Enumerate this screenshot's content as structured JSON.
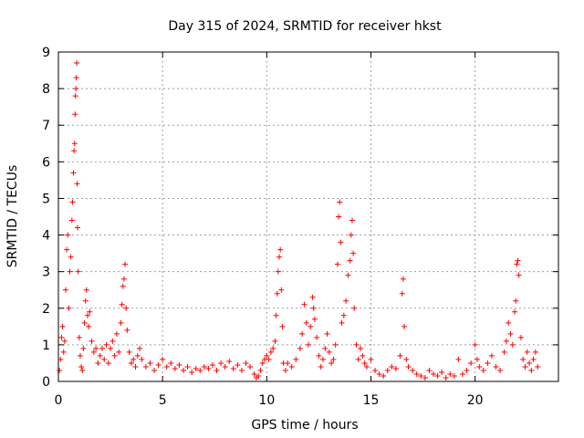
{
  "chart_data": {
    "type": "scatter",
    "title": "Day 315 of 2024, SRMTID for receiver hkst",
    "xlabel": "GPS time / hours",
    "ylabel": "SRMTID / TECUs",
    "xlim": [
      0,
      24
    ],
    "ylim": [
      0,
      9
    ],
    "xticks": [
      0,
      5,
      10,
      15,
      20
    ],
    "yticks": [
      0,
      1,
      2,
      3,
      4,
      5,
      6,
      7,
      8,
      9
    ],
    "grid": true,
    "marker": "plus",
    "color": "#ff0000",
    "series": [
      {
        "name": "SRMTID",
        "points": [
          [
            0.05,
            0.3
          ],
          [
            0.1,
            0.6
          ],
          [
            0.15,
            1.2
          ],
          [
            0.2,
            1.5
          ],
          [
            0.25,
            0.8
          ],
          [
            0.3,
            1.1
          ],
          [
            0.35,
            2.5
          ],
          [
            0.4,
            3.6
          ],
          [
            0.45,
            4.0
          ],
          [
            0.5,
            2.0
          ],
          [
            0.55,
            3.0
          ],
          [
            0.6,
            3.4
          ],
          [
            0.65,
            4.4
          ],
          [
            0.68,
            4.9
          ],
          [
            0.72,
            5.7
          ],
          [
            0.75,
            6.3
          ],
          [
            0.78,
            6.5
          ],
          [
            0.8,
            7.3
          ],
          [
            0.82,
            7.8
          ],
          [
            0.84,
            8.0
          ],
          [
            0.86,
            8.3
          ],
          [
            0.88,
            8.7
          ],
          [
            0.9,
            5.4
          ],
          [
            0.92,
            4.2
          ],
          [
            0.95,
            3.0
          ],
          [
            1.0,
            1.2
          ],
          [
            1.05,
            0.7
          ],
          [
            1.1,
            0.4
          ],
          [
            1.15,
            0.3
          ],
          [
            1.2,
            0.9
          ],
          [
            1.25,
            1.6
          ],
          [
            1.3,
            2.2
          ],
          [
            1.35,
            2.5
          ],
          [
            1.4,
            1.8
          ],
          [
            1.45,
            1.5
          ],
          [
            1.5,
            1.9
          ],
          [
            1.6,
            1.1
          ],
          [
            1.7,
            0.8
          ],
          [
            1.8,
            0.9
          ],
          [
            1.9,
            0.5
          ],
          [
            2.0,
            0.7
          ],
          [
            2.1,
            0.9
          ],
          [
            2.2,
            0.6
          ],
          [
            2.3,
            1.0
          ],
          [
            2.4,
            0.5
          ],
          [
            2.5,
            0.9
          ],
          [
            2.6,
            1.1
          ],
          [
            2.7,
            0.7
          ],
          [
            2.8,
            1.3
          ],
          [
            2.9,
            0.8
          ],
          [
            3.0,
            1.6
          ],
          [
            3.05,
            2.1
          ],
          [
            3.1,
            2.6
          ],
          [
            3.15,
            2.8
          ],
          [
            3.2,
            3.2
          ],
          [
            3.25,
            2.0
          ],
          [
            3.3,
            1.4
          ],
          [
            3.4,
            0.8
          ],
          [
            3.5,
            0.5
          ],
          [
            3.6,
            0.6
          ],
          [
            3.7,
            0.4
          ],
          [
            3.8,
            0.7
          ],
          [
            3.9,
            0.9
          ],
          [
            4.0,
            0.6
          ],
          [
            4.2,
            0.4
          ],
          [
            4.4,
            0.5
          ],
          [
            4.6,
            0.3
          ],
          [
            4.8,
            0.45
          ],
          [
            5.0,
            0.6
          ],
          [
            5.2,
            0.4
          ],
          [
            5.4,
            0.5
          ],
          [
            5.6,
            0.35
          ],
          [
            5.8,
            0.45
          ],
          [
            6.0,
            0.3
          ],
          [
            6.2,
            0.4
          ],
          [
            6.4,
            0.25
          ],
          [
            6.6,
            0.35
          ],
          [
            6.8,
            0.3
          ],
          [
            7.0,
            0.4
          ],
          [
            7.2,
            0.35
          ],
          [
            7.4,
            0.45
          ],
          [
            7.6,
            0.3
          ],
          [
            7.8,
            0.5
          ],
          [
            8.0,
            0.4
          ],
          [
            8.2,
            0.55
          ],
          [
            8.4,
            0.35
          ],
          [
            8.6,
            0.45
          ],
          [
            8.8,
            0.3
          ],
          [
            9.0,
            0.5
          ],
          [
            9.2,
            0.4
          ],
          [
            9.4,
            0.2
          ],
          [
            9.5,
            0.1
          ],
          [
            9.6,
            0.15
          ],
          [
            9.7,
            0.3
          ],
          [
            9.8,
            0.5
          ],
          [
            9.9,
            0.6
          ],
          [
            10.0,
            0.7
          ],
          [
            10.1,
            0.6
          ],
          [
            10.2,
            0.8
          ],
          [
            10.3,
            0.9
          ],
          [
            10.4,
            1.1
          ],
          [
            10.45,
            1.8
          ],
          [
            10.5,
            2.4
          ],
          [
            10.55,
            3.0
          ],
          [
            10.6,
            3.4
          ],
          [
            10.65,
            3.6
          ],
          [
            10.7,
            2.5
          ],
          [
            10.75,
            1.5
          ],
          [
            10.8,
            0.5
          ],
          [
            10.9,
            0.3
          ],
          [
            11.0,
            0.5
          ],
          [
            11.2,
            0.4
          ],
          [
            11.4,
            0.6
          ],
          [
            11.6,
            0.9
          ],
          [
            11.7,
            1.3
          ],
          [
            11.8,
            2.1
          ],
          [
            11.9,
            1.6
          ],
          [
            12.0,
            1.0
          ],
          [
            12.1,
            1.5
          ],
          [
            12.2,
            2.3
          ],
          [
            12.25,
            2.0
          ],
          [
            12.3,
            1.7
          ],
          [
            12.4,
            1.2
          ],
          [
            12.5,
            0.7
          ],
          [
            12.6,
            0.4
          ],
          [
            12.7,
            0.6
          ],
          [
            12.8,
            0.9
          ],
          [
            12.9,
            1.3
          ],
          [
            13.0,
            0.8
          ],
          [
            13.1,
            0.5
          ],
          [
            13.2,
            0.6
          ],
          [
            13.3,
            1.0
          ],
          [
            13.4,
            3.2
          ],
          [
            13.45,
            4.5
          ],
          [
            13.5,
            4.9
          ],
          [
            13.55,
            3.8
          ],
          [
            13.6,
            1.6
          ],
          [
            13.7,
            1.8
          ],
          [
            13.8,
            2.2
          ],
          [
            13.9,
            2.9
          ],
          [
            14.0,
            3.3
          ],
          [
            14.05,
            4.0
          ],
          [
            14.1,
            4.4
          ],
          [
            14.15,
            3.5
          ],
          [
            14.2,
            2.0
          ],
          [
            14.3,
            1.0
          ],
          [
            14.4,
            0.6
          ],
          [
            14.5,
            0.9
          ],
          [
            14.6,
            0.7
          ],
          [
            14.7,
            0.5
          ],
          [
            14.8,
            0.4
          ],
          [
            15.0,
            0.6
          ],
          [
            15.2,
            0.3
          ],
          [
            15.4,
            0.2
          ],
          [
            15.6,
            0.15
          ],
          [
            15.8,
            0.3
          ],
          [
            16.0,
            0.4
          ],
          [
            16.2,
            0.35
          ],
          [
            16.4,
            0.7
          ],
          [
            16.5,
            2.4
          ],
          [
            16.55,
            2.8
          ],
          [
            16.6,
            1.5
          ],
          [
            16.7,
            0.6
          ],
          [
            16.8,
            0.4
          ],
          [
            17.0,
            0.3
          ],
          [
            17.2,
            0.2
          ],
          [
            17.4,
            0.15
          ],
          [
            17.6,
            0.1
          ],
          [
            17.8,
            0.3
          ],
          [
            18.0,
            0.2
          ],
          [
            18.2,
            0.15
          ],
          [
            18.4,
            0.25
          ],
          [
            18.6,
            0.1
          ],
          [
            18.8,
            0.2
          ],
          [
            19.0,
            0.15
          ],
          [
            19.2,
            0.6
          ],
          [
            19.4,
            0.2
          ],
          [
            19.6,
            0.3
          ],
          [
            19.8,
            0.5
          ],
          [
            20.0,
            1.0
          ],
          [
            20.1,
            0.6
          ],
          [
            20.2,
            0.4
          ],
          [
            20.4,
            0.3
          ],
          [
            20.6,
            0.5
          ],
          [
            20.8,
            0.7
          ],
          [
            21.0,
            0.4
          ],
          [
            21.2,
            0.3
          ],
          [
            21.4,
            0.8
          ],
          [
            21.5,
            1.1
          ],
          [
            21.6,
            1.6
          ],
          [
            21.7,
            1.3
          ],
          [
            21.8,
            1.0
          ],
          [
            21.9,
            1.9
          ],
          [
            21.95,
            2.2
          ],
          [
            22.0,
            3.2
          ],
          [
            22.05,
            3.3
          ],
          [
            22.1,
            2.9
          ],
          [
            22.2,
            1.2
          ],
          [
            22.3,
            0.6
          ],
          [
            22.4,
            0.4
          ],
          [
            22.5,
            0.8
          ],
          [
            22.6,
            0.5
          ],
          [
            22.7,
            0.3
          ],
          [
            22.8,
            0.6
          ],
          [
            22.9,
            0.8
          ],
          [
            23.0,
            0.4
          ]
        ]
      }
    ]
  }
}
